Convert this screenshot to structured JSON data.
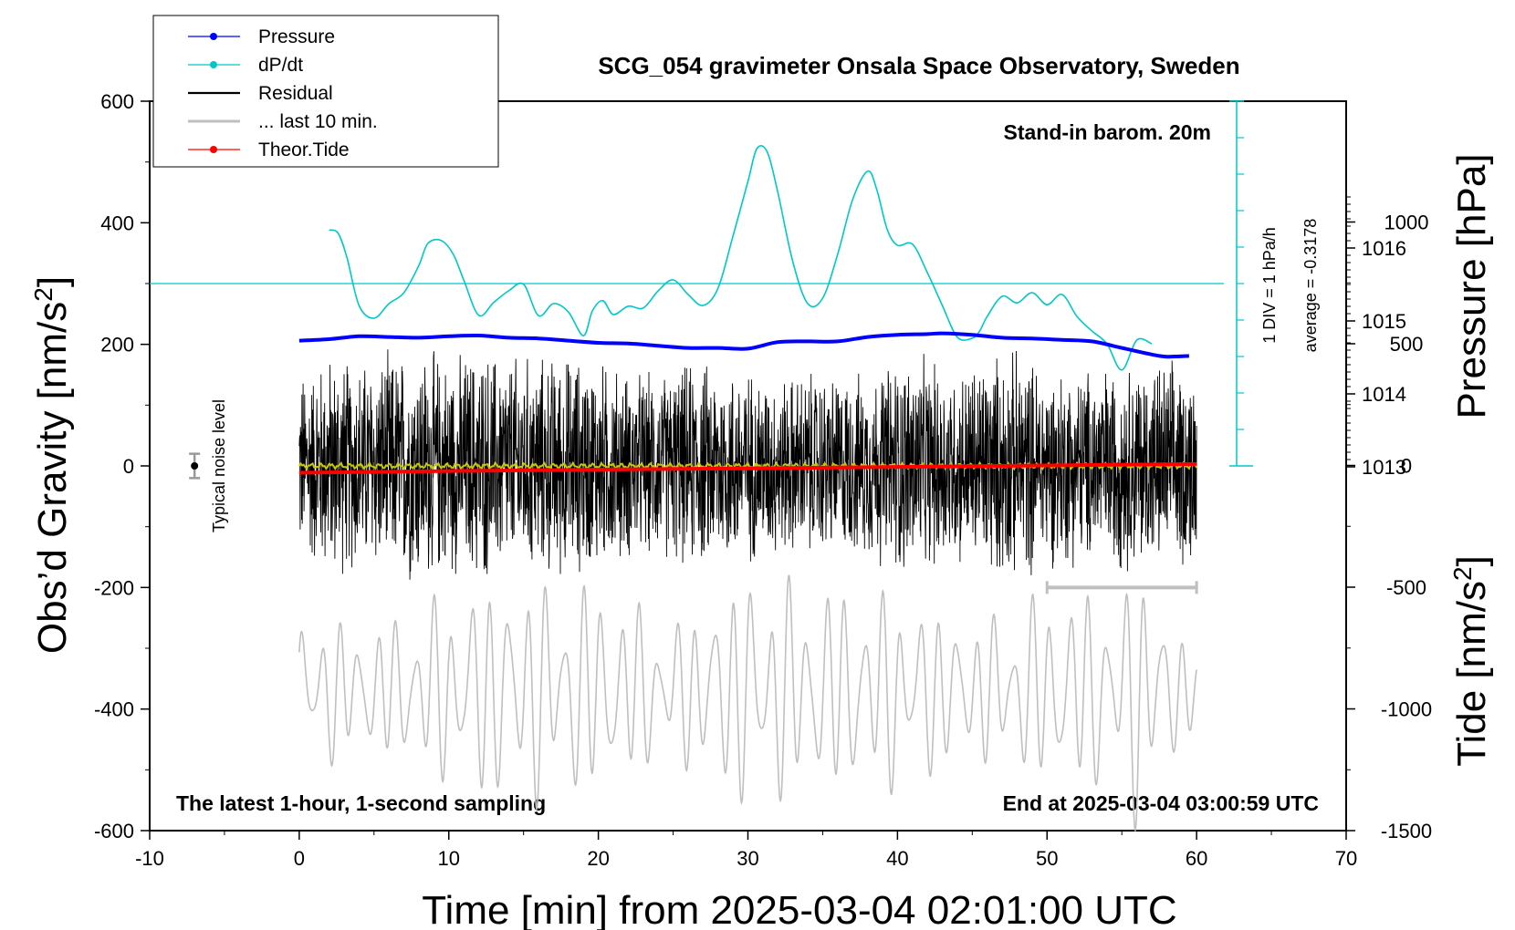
{
  "chart_data": {
    "type": "line",
    "title": "SCG_054 gravimeter Onsala Space Observatory, Sweden",
    "xlabel": "Time [min] from 2025-03-04 02:01:00 UTC",
    "ylabel_main": "Obs’d Gravity [nm/s",
    "ylabel_pressure": "Pressure [hPa]",
    "ylabel_tide": "Tide [nm/s",
    "unit_superscript": "2",
    "unit_close": "]",
    "xlim": [
      -10,
      70
    ],
    "ylim_gravity": [
      -600,
      600
    ],
    "x_ticks": [
      "-10",
      "0",
      "10",
      "20",
      "30",
      "40",
      "50",
      "60",
      "70"
    ],
    "y_ticks_gravity": [
      "-600",
      "-400",
      "-200",
      "0",
      "200",
      "400",
      "600"
    ],
    "y_ticks_pressure": [
      "1013",
      "1014",
      "1015",
      "1016"
    ],
    "y_ticks_tide": [
      "-1500",
      "-1000",
      "-500",
      "0",
      "500",
      "1000"
    ],
    "legend": [
      {
        "label": "Pressure",
        "color": "#0000ff",
        "marker": true
      },
      {
        "label": "dP/dt",
        "color": "#00c8c8",
        "marker": true
      },
      {
        "label": "Residual",
        "color": "#000000",
        "marker": false
      },
      {
        "label": "... last 10 min.",
        "color": "#bfbfbf",
        "marker": false
      },
      {
        "label": "Theor.Tide",
        "color": "#ff0000",
        "marker": true
      }
    ],
    "annotations": {
      "stand_in": "Stand-in barom. 20m",
      "latest": "The latest 1-hour, 1-second sampling",
      "end_at": "End at 2025-03-04 03:00:59 UTC",
      "noise": "Typical noise level",
      "div": "1 DIV = 1 hPa/h",
      "average": "average = -0.3178"
    },
    "series": [
      {
        "name": "Pressure",
        "axis": "pressure_hPa",
        "x": [
          0,
          2,
          4,
          6,
          8,
          10,
          12,
          14,
          16,
          18,
          20,
          22,
          24,
          26,
          28,
          30,
          32,
          34,
          36,
          38,
          40,
          42,
          43,
          45,
          47,
          49,
          51,
          53,
          55,
          57,
          58,
          59.5
        ],
        "values": [
          1014.73,
          1014.75,
          1014.79,
          1014.78,
          1014.77,
          1014.79,
          1014.8,
          1014.77,
          1014.76,
          1014.73,
          1014.7,
          1014.69,
          1014.66,
          1014.63,
          1014.63,
          1014.62,
          1014.71,
          1014.72,
          1014.72,
          1014.78,
          1014.81,
          1014.82,
          1014.83,
          1014.81,
          1014.77,
          1014.76,
          1014.74,
          1014.72,
          1014.63,
          1014.54,
          1014.51,
          1014.52
        ]
      },
      {
        "name": "dP/dt",
        "axis": "dPdt_hPa_per_h",
        "zero_gravity": 300,
        "gravity_per_hPa_h": 60,
        "x": [
          2,
          2.6,
          3.2,
          4,
          5,
          6,
          7,
          8,
          8.6,
          9.5,
          10.3,
          11,
          12,
          13,
          14,
          15,
          16,
          17,
          18,
          19,
          19.6,
          20.3,
          21,
          22,
          23,
          24,
          25,
          26,
          27,
          28,
          29,
          30,
          30.6,
          31.3,
          32,
          33,
          34,
          35,
          36,
          37,
          38,
          38.6,
          39.3,
          40,
          41,
          42,
          43,
          44,
          45,
          45.5,
          46,
          47,
          48,
          49,
          50,
          51,
          52,
          53,
          54,
          55,
          56,
          57
        ],
        "values": [
          1.47,
          1.38,
          0.7,
          -0.6,
          -0.95,
          -0.55,
          -0.25,
          0.5,
          1.1,
          1.18,
          0.8,
          0.1,
          -0.87,
          -0.52,
          -0.2,
          -0.02,
          -0.88,
          -0.55,
          -0.78,
          -1.43,
          -0.75,
          -0.47,
          -0.85,
          -0.62,
          -0.67,
          -0.2,
          0.1,
          -0.3,
          -0.6,
          -0.13,
          1.3,
          2.8,
          3.7,
          3.6,
          2.5,
          0.6,
          -0.55,
          -0.4,
          0.8,
          2.3,
          3.08,
          2.6,
          1.5,
          1.05,
          1.08,
          0.3,
          -0.6,
          -1.47,
          -1.5,
          -1.3,
          -0.9,
          -0.35,
          -0.53,
          -0.25,
          -0.58,
          -0.3,
          -0.9,
          -1.3,
          -1.65,
          -2.37,
          -1.55,
          -1.65
        ]
      },
      {
        "name": "Residual",
        "axis": "gravity_nm_s2",
        "x": [
          0,
          5,
          10,
          15,
          20,
          25,
          30,
          35,
          40,
          45,
          50,
          55,
          60
        ],
        "values": [
          0,
          0,
          0,
          0,
          0,
          0,
          0,
          0,
          0,
          0,
          0,
          0,
          0
        ],
        "envelope": {
          "x": [
            0,
            2,
            4,
            6,
            8,
            10,
            12,
            14,
            16,
            18,
            20,
            22,
            24,
            26,
            28,
            30,
            32,
            34,
            36,
            38,
            40,
            42,
            44,
            46,
            48,
            50,
            52,
            54,
            56,
            58,
            60
          ],
          "values": [
            170,
            200,
            190,
            200,
            215,
            195,
            210,
            200,
            195,
            200,
            190,
            170,
            165,
            185,
            185,
            175,
            160,
            170,
            165,
            165,
            200,
            190,
            175,
            200,
            205,
            180,
            175,
            180,
            190,
            185,
            180
          ]
        }
      },
      {
        "name": "... last 10 min.",
        "axis": "gravity_nm_s2",
        "x_source_range": [
          50,
          60
        ],
        "x_display_range": [
          0,
          60
        ],
        "offset": -370,
        "amplitude_range": [
          60,
          230
        ],
        "envelope": {
          "x": [
            0,
            5,
            10,
            14,
            20,
            25,
            30,
            35,
            40,
            45,
            50,
            55,
            56,
            60
          ],
          "values": [
            140,
            110,
            170,
            200,
            185,
            120,
            210,
            180,
            175,
            120,
            170,
            180,
            230,
            60
          ]
        }
      },
      {
        "name": "Theor.Tide",
        "axis": "tide_nm_s2",
        "x": [
          0,
          10,
          20,
          30,
          40,
          50,
          60
        ],
        "values": [
          -30,
          -23,
          -17,
          -12,
          -6,
          0,
          6
        ]
      }
    ],
    "noise_bar": {
      "x": -7,
      "value": 0,
      "half_range": 20
    },
    "window_bar": {
      "x_start": 50,
      "x_end": 60,
      "value": -200
    }
  }
}
